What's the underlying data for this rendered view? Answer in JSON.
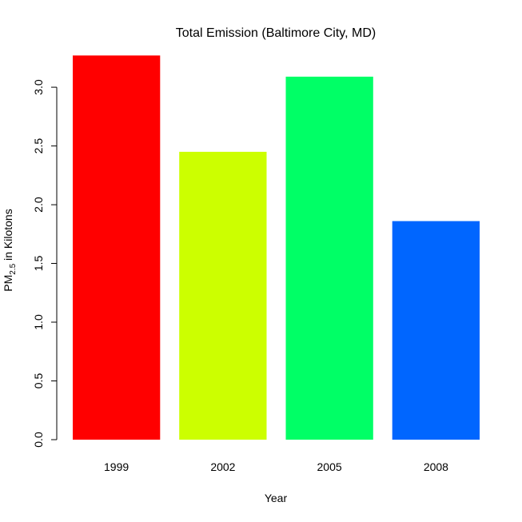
{
  "chart_data": {
    "type": "bar",
    "title": "Total Emission  (Baltimore City, MD)",
    "xlabel": "Year",
    "ylabel": {
      "prefix": "PM",
      "subscript": "2.5",
      "suffix": " in Kilotons"
    },
    "categories": [
      "1999",
      "2002",
      "2005",
      "2008"
    ],
    "values": [
      3.27,
      2.45,
      3.09,
      1.86
    ],
    "colors": [
      "#FF0000",
      "#CCFF00",
      "#00FF66",
      "#0066FF"
    ],
    "ylim": [
      0,
      3.3
    ],
    "yticks": [
      0.0,
      0.5,
      1.0,
      1.5,
      2.0,
      2.5,
      3.0
    ],
    "ytick_labels": [
      "0.0",
      "0.5",
      "1.0",
      "1.5",
      "2.0",
      "2.5",
      "3.0"
    ],
    "grid": false,
    "legend": "none"
  }
}
